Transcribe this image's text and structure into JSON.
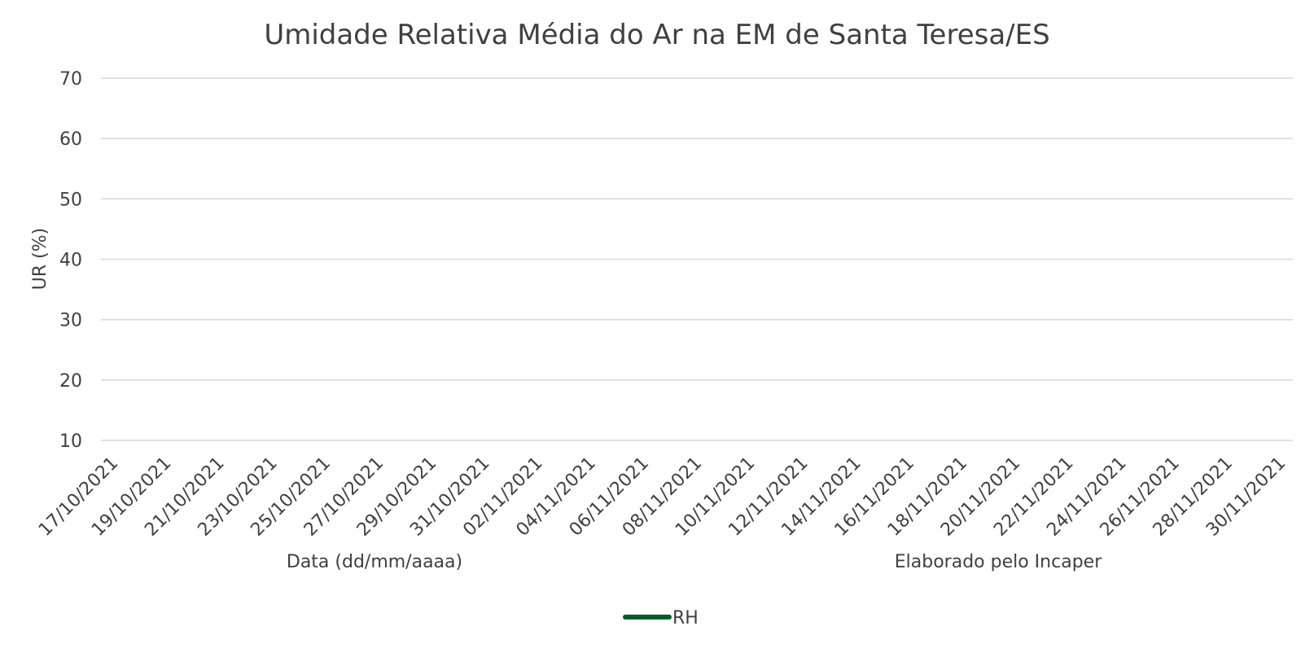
{
  "chart_data": {
    "type": "line",
    "title": "Umidade Relativa Média do Ar na EM de Santa Teresa/ES",
    "xlabel": "Data (dd/mm/aaaa)",
    "ylabel": "UR (%)",
    "note": "Elaborado pelo Incaper",
    "ylim": [
      10,
      70
    ],
    "yticks": [
      10,
      20,
      30,
      40,
      50,
      60,
      70
    ],
    "x_tick_labels": [
      "17/10/2021",
      "19/10/2021",
      "21/10/2021",
      "23/10/2021",
      "25/10/2021",
      "27/10/2021",
      "29/10/2021",
      "31/10/2021",
      "02/11/2021",
      "04/11/2021",
      "06/11/2021",
      "08/11/2021",
      "10/11/2021",
      "12/11/2021",
      "14/11/2021",
      "16/11/2021",
      "18/11/2021",
      "20/11/2021",
      "22/11/2021",
      "24/11/2021",
      "26/11/2021",
      "28/11/2021",
      "30/11/2021"
    ],
    "grid": true,
    "legend_position": "bottom",
    "series": [
      {
        "name": "RH",
        "color": "#0b5a2a",
        "values": []
      }
    ]
  }
}
